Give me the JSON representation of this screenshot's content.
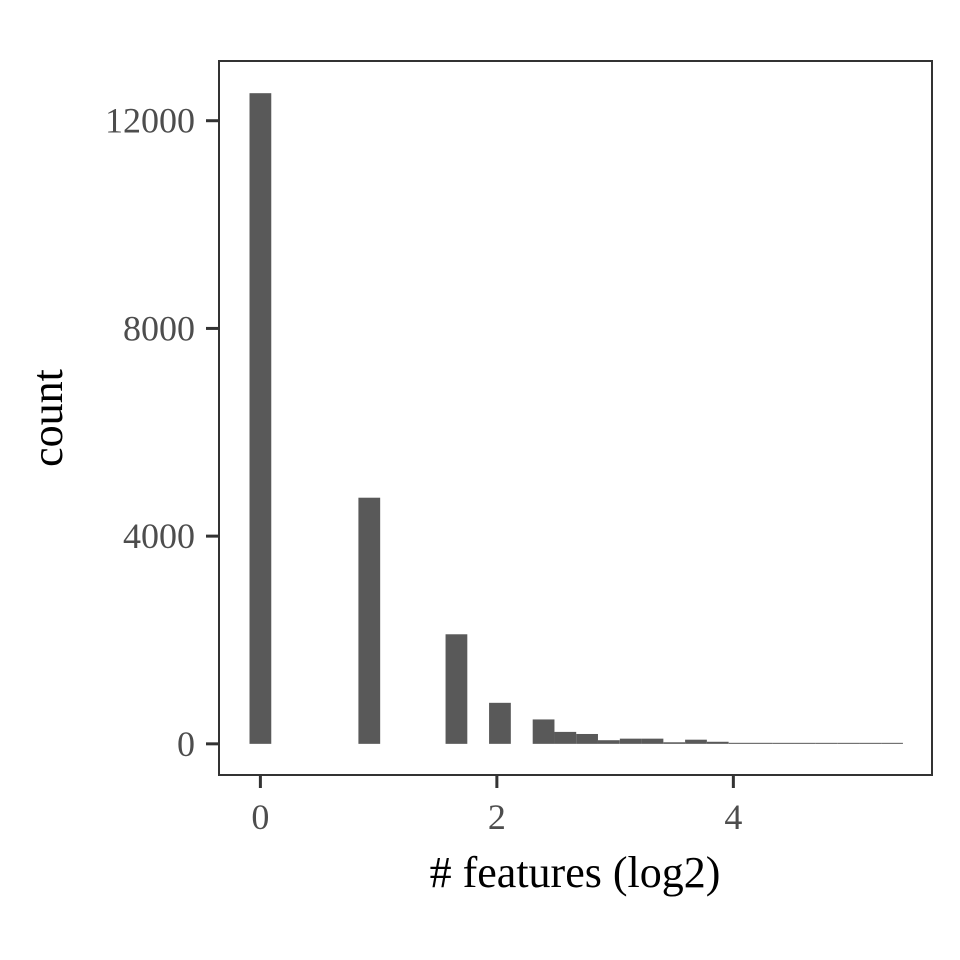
{
  "chart_data": {
    "type": "bar",
    "xlabel": "# features (log2)",
    "ylabel": "count",
    "x_ticks": [
      0,
      2,
      4
    ],
    "x_tick_labels": [
      "0",
      "2",
      "4"
    ],
    "y_ticks": [
      0,
      4000,
      8000,
      12000
    ],
    "y_tick_labels": [
      "0",
      "4000",
      "8000",
      "12000"
    ],
    "xlim": [
      -0.35,
      5.68
    ],
    "ylim": [
      -600,
      13150
    ],
    "bin_width": 0.184,
    "grid": false,
    "legend": "none",
    "bar_color": "#595959",
    "bins": [
      {
        "x": 0.0,
        "count": 12530
      },
      {
        "x": 0.921,
        "count": 4740
      },
      {
        "x": 1.658,
        "count": 2110
      },
      {
        "x": 2.026,
        "count": 790
      },
      {
        "x": 2.395,
        "count": 470
      },
      {
        "x": 2.579,
        "count": 230
      },
      {
        "x": 2.763,
        "count": 190
      },
      {
        "x": 2.947,
        "count": 70
      },
      {
        "x": 3.132,
        "count": 100
      },
      {
        "x": 3.316,
        "count": 100
      },
      {
        "x": 3.5,
        "count": 30
      },
      {
        "x": 3.684,
        "count": 80
      },
      {
        "x": 3.868,
        "count": 40
      },
      {
        "x": 4.053,
        "count": 20
      },
      {
        "x": 4.237,
        "count": 20
      },
      {
        "x": 4.421,
        "count": 5
      },
      {
        "x": 4.605,
        "count": 8
      },
      {
        "x": 4.789,
        "count": 12
      },
      {
        "x": 4.974,
        "count": 12
      },
      {
        "x": 5.158,
        "count": 2
      },
      {
        "x": 5.342,
        "count": 4
      }
    ]
  }
}
